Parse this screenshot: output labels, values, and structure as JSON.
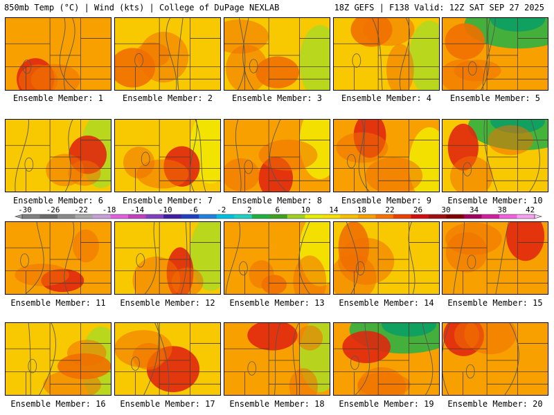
{
  "header": {
    "left": "850mb Temp (°C) | Wind (kts) | College of DuPage NEXLAB",
    "right": "18Z GEFS | F138 Valid: 12Z SAT SEP 27 2025"
  },
  "colorbar": {
    "ticks": [
      "-30",
      "-26",
      "-22",
      "-18",
      "-14",
      "-10",
      "-6",
      "-2",
      "2",
      "6",
      "10",
      "14",
      "18",
      "22",
      "26",
      "30",
      "34",
      "38",
      "42"
    ],
    "colors": [
      "#808080",
      "#6a6a6a",
      "#8a8a8a",
      "#a8a8a8",
      "#c8a0d8",
      "#e060e0",
      "#c040c0",
      "#8040c0",
      "#4020a0",
      "#2040c0",
      "#2080e0",
      "#00c0e0",
      "#20d0c0",
      "#20b040",
      "#40a020",
      "#a0d020",
      "#e8f000",
      "#f8e000",
      "#f8c000",
      "#f8a000",
      "#f87000",
      "#e84000",
      "#d01010",
      "#a01010",
      "#800000",
      "#a00060",
      "#d020a0",
      "#f060e0",
      "#f8a0f0"
    ]
  },
  "map_colors": {
    "yellow": "#f2e600",
    "yellow_orange": "#f8c800",
    "orange": "#f8a000",
    "dark_orange": "#f07000",
    "red": "#e02810",
    "green": "#30b040",
    "lime": "#b0d820"
  },
  "panels": [
    {
      "label": "Ensemble Member: 1",
      "base": "orange",
      "hot": "red",
      "cool": null
    },
    {
      "label": "Ensemble Member: 2",
      "base": "yellow_orange",
      "hot": "dark_orange",
      "cool": null
    },
    {
      "label": "Ensemble Member: 3",
      "base": "yellow_orange",
      "hot": "dark_orange",
      "cool": "lime"
    },
    {
      "label": "Ensemble Member: 4",
      "base": "yellow_orange",
      "hot": "dark_orange",
      "cool": "lime"
    },
    {
      "label": "Ensemble Member: 5",
      "base": "orange",
      "hot": "dark_orange",
      "cool": "green"
    },
    {
      "label": "Ensemble Member: 6",
      "base": "yellow_orange",
      "hot": "red",
      "cool": "lime"
    },
    {
      "label": "Ensemble Member: 7",
      "base": "yellow_orange",
      "hot": "red",
      "cool": "yellow"
    },
    {
      "label": "Ensemble Member: 8",
      "base": "orange",
      "hot": "red",
      "cool": "yellow"
    },
    {
      "label": "Ensemble Member: 9",
      "base": "orange",
      "hot": "red",
      "cool": "yellow"
    },
    {
      "label": "Ensemble Member: 10",
      "base": "yellow_orange",
      "hot": "red",
      "cool": "green"
    },
    {
      "label": "Ensemble Member: 11",
      "base": "orange",
      "hot": "red",
      "cool": null
    },
    {
      "label": "Ensemble Member: 12",
      "base": "yellow_orange",
      "hot": "red",
      "cool": "lime"
    },
    {
      "label": "Ensemble Member: 13",
      "base": "orange",
      "hot": "dark_orange",
      "cool": "yellow"
    },
    {
      "label": "Ensemble Member: 14",
      "base": "yellow_orange",
      "hot": "dark_orange",
      "cool": null
    },
    {
      "label": "Ensemble Member: 15",
      "base": "orange",
      "hot": "red",
      "cool": null
    },
    {
      "label": "Ensemble Member: 16",
      "base": "yellow_orange",
      "hot": "dark_orange",
      "cool": "lime"
    },
    {
      "label": "Ensemble Member: 17",
      "base": "yellow_orange",
      "hot": "red",
      "cool": null
    },
    {
      "label": "Ensemble Member: 18",
      "base": "orange",
      "hot": "red",
      "cool": "lime"
    },
    {
      "label": "Ensemble Member: 19",
      "base": "orange",
      "hot": "red",
      "cool": "green"
    },
    {
      "label": "Ensemble Member: 20",
      "base": "orange",
      "hot": "red",
      "cool": null
    }
  ]
}
